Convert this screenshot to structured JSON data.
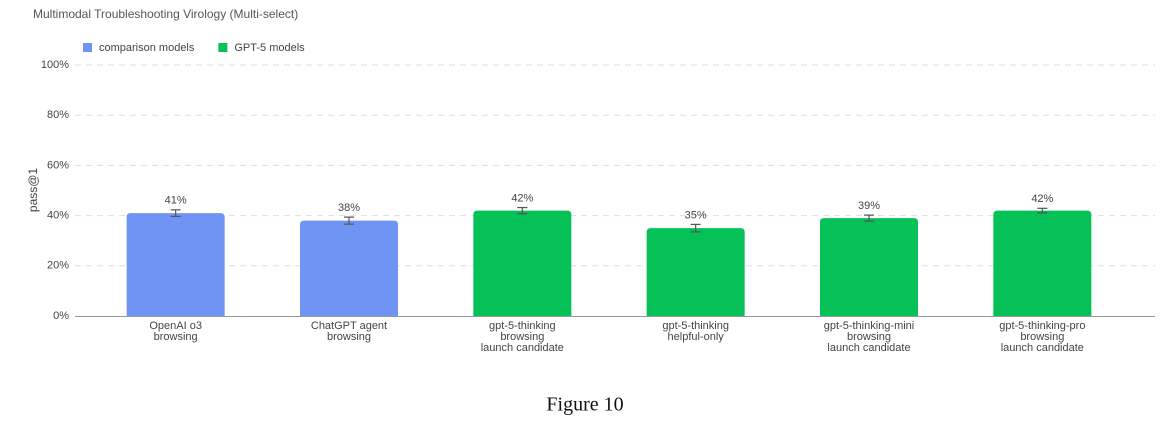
{
  "chart_data": {
    "type": "bar",
    "title": "Multimodal Troubleshooting Virology (Multi-select)",
    "ylabel": "pass@1",
    "categories": [
      [
        "OpenAI o3",
        "browsing"
      ],
      [
        "ChatGPT agent",
        "browsing"
      ],
      [
        "gpt-5-thinking",
        "browsing",
        "launch candidate"
      ],
      [
        "gpt-5-thinking",
        "helpful-only"
      ],
      [
        "gpt-5-thinking-mini",
        "browsing",
        "launch candidate"
      ],
      [
        "gpt-5-thinking-pro",
        "browsing",
        "launch candidate"
      ]
    ],
    "series": [
      {
        "name": "comparison models",
        "color": "#7094f4",
        "values": [
          41,
          38,
          null,
          null,
          null,
          null
        ],
        "value_labels": [
          "41%",
          "38%",
          null,
          null,
          null,
          null
        ],
        "errors": [
          1.3,
          1.4,
          null,
          null,
          null,
          null
        ]
      },
      {
        "name": "GPT-5 models",
        "color": "#05c157",
        "values": [
          null,
          null,
          42,
          35,
          39,
          42
        ],
        "value_labels": [
          null,
          null,
          "42%",
          "35%",
          "39%",
          "42%"
        ],
        "errors": [
          null,
          null,
          1.2,
          1.5,
          1.2,
          0.9
        ]
      }
    ],
    "ylim": [
      0,
      100
    ],
    "yticks": [
      {
        "value": 0,
        "label": "0%"
      },
      {
        "value": 20,
        "label": "20%"
      },
      {
        "value": 40,
        "label": "40%"
      },
      {
        "value": 60,
        "label": "60%"
      },
      {
        "value": 80,
        "label": "80%"
      },
      {
        "value": 100,
        "label": "100%"
      }
    ],
    "grid": true,
    "legend": "top-left"
  },
  "caption": "Figure 10"
}
